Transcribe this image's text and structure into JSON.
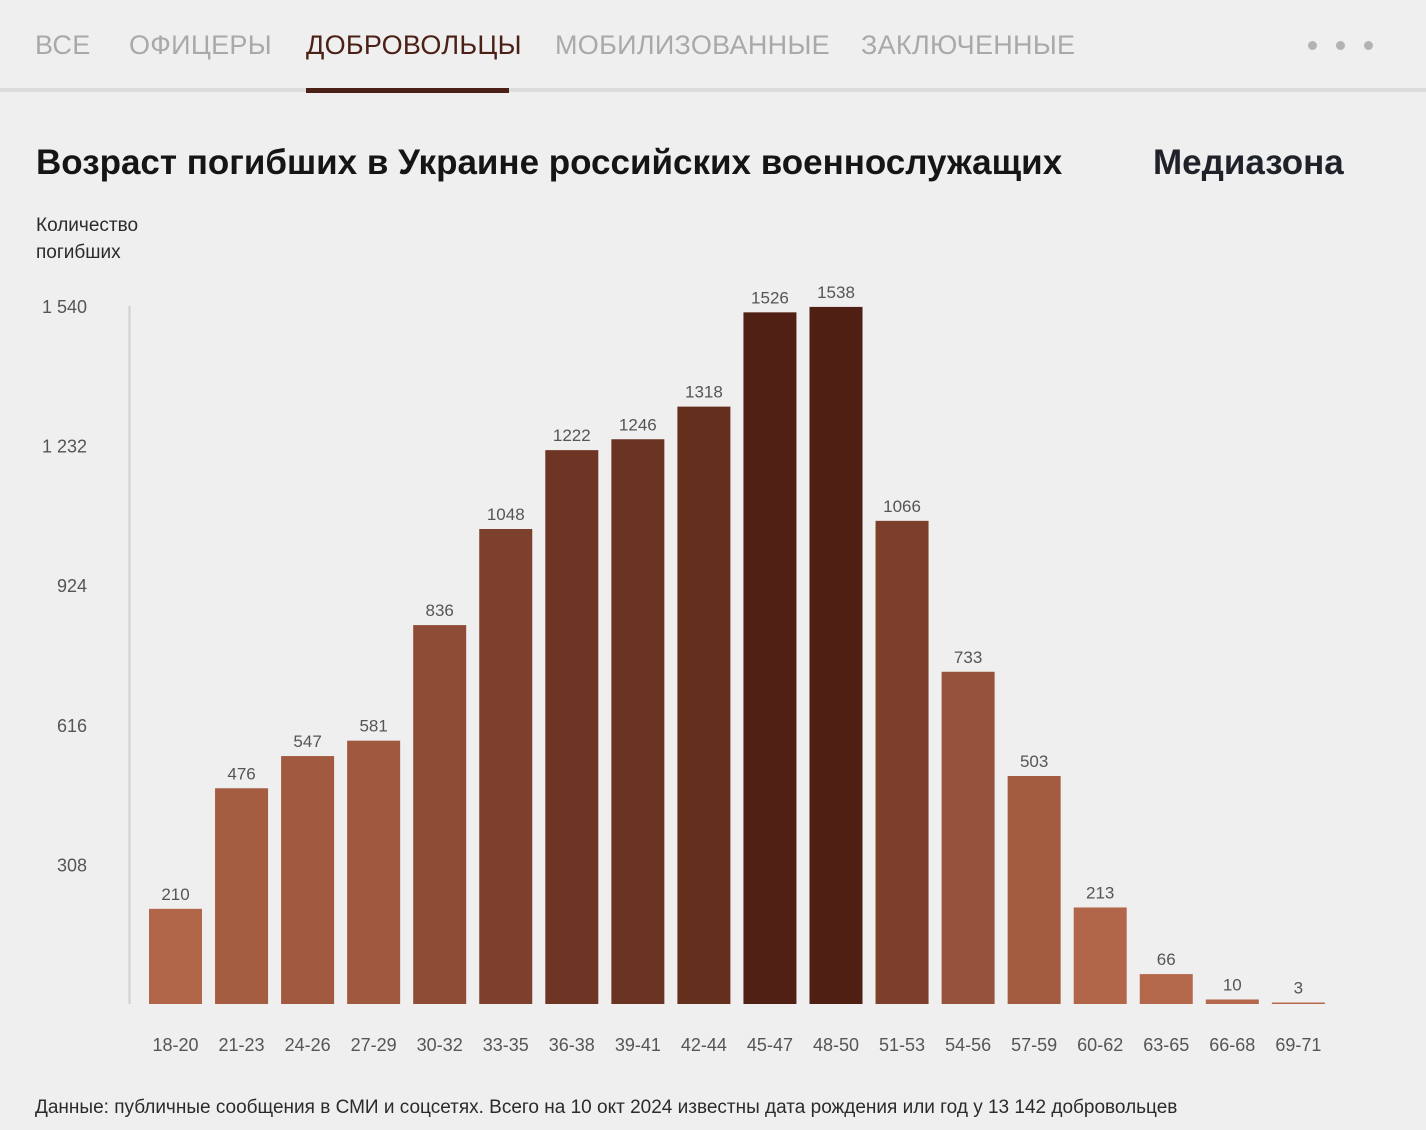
{
  "tabs": [
    {
      "label": "ВСЕ",
      "active": false
    },
    {
      "label": "ОФИЦЕРЫ",
      "active": false
    },
    {
      "label": "ДОБРОВОЛЬЦЫ",
      "active": true
    },
    {
      "label": "МОБИЛИЗОВАННЫЕ",
      "active": false
    },
    {
      "label": "ЗАКЛЮЧЕННЫЕ",
      "active": false
    }
  ],
  "more_icon": "more-horizontal-icon",
  "brand": "Медиазона",
  "footnote": "Данные: публичные сообщения в СМИ и соцсетях. Всего на 10 окт 2024 известны дата рождения или год у 13 142 добровольцев",
  "colors": {
    "accent": "#4b2016",
    "inactive_tab": "#a9a9a9",
    "bar_light": "#b5684b",
    "bar_dark": "#4e1f12"
  },
  "chart_data": {
    "type": "bar",
    "title": "Возраст погибших в Украине российских военнослужащих",
    "ylabel": "Количество погибших",
    "xlabel": "",
    "categories": [
      "18-20",
      "21-23",
      "24-26",
      "27-29",
      "30-32",
      "33-35",
      "36-38",
      "39-41",
      "42-44",
      "45-47",
      "48-50",
      "51-53",
      "54-56",
      "57-59",
      "60-62",
      "63-65",
      "66-68",
      "69-71"
    ],
    "values": [
      210,
      476,
      547,
      581,
      836,
      1048,
      1222,
      1246,
      1318,
      1526,
      1538,
      1066,
      733,
      503,
      213,
      66,
      10,
      3
    ],
    "yticks": [
      308,
      616,
      924,
      1232,
      1540
    ],
    "ytick_labels": [
      "308",
      "616",
      "924",
      "1 232",
      "1 540"
    ],
    "ylim": [
      0,
      1540
    ],
    "grid": false,
    "legend": "none"
  }
}
